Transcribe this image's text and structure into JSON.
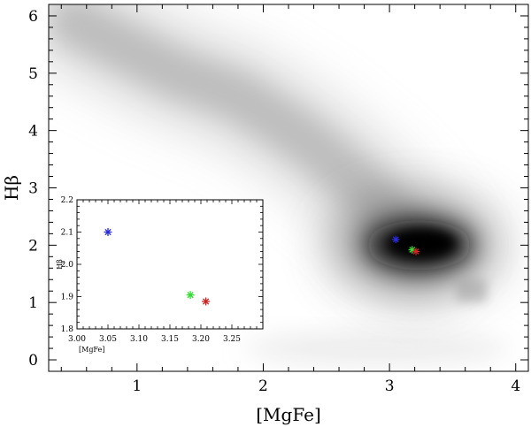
{
  "chart_data": [
    {
      "type": "heatmap",
      "xlabel": "[MgFe]",
      "ylabel": "Hβ",
      "xlim": [
        0.3,
        4.1
      ],
      "ylim": [
        -0.2,
        6.2
      ],
      "xticks": [
        1,
        2,
        3,
        4
      ],
      "yticks": [
        0,
        1,
        2,
        3,
        4,
        5,
        6
      ],
      "density_description_points": [
        {
          "x": 0.5,
          "y": 5.9,
          "level": 0.04
        },
        {
          "x": 1.3,
          "y": 5.0,
          "level": 0.08
        },
        {
          "x": 1.8,
          "y": 4.6,
          "level": 0.12
        },
        {
          "x": 2.3,
          "y": 3.9,
          "level": 0.22
        },
        {
          "x": 2.8,
          "y": 3.0,
          "level": 0.35
        },
        {
          "x": 3.2,
          "y": 2.0,
          "level": 1.0
        },
        {
          "x": 3.65,
          "y": 1.2,
          "level": 0.3
        }
      ],
      "markers": [
        {
          "x": 3.05,
          "y": 2.1,
          "color": "#2a2ad6"
        },
        {
          "x": 3.18,
          "y": 1.92,
          "color": "#33dd33"
        },
        {
          "x": 3.21,
          "y": 1.89,
          "color": "#cc2222"
        }
      ],
      "grid": false
    },
    {
      "type": "scatter",
      "xlabel": "[MgFe]",
      "ylabel": "Hβ",
      "xlim": [
        3.0,
        3.3
      ],
      "ylim": [
        1.8,
        2.2
      ],
      "xticks": [
        3.0,
        3.05,
        3.1,
        3.15,
        3.2,
        3.25
      ],
      "yticks": [
        1.8,
        1.9,
        2.0,
        2.1,
        2.2
      ],
      "points": [
        {
          "x": 3.05,
          "y": 2.1,
          "color": "#2a2ad6"
        },
        {
          "x": 3.183,
          "y": 1.905,
          "color": "#33dd33"
        },
        {
          "x": 3.208,
          "y": 1.885,
          "color": "#cc2222"
        }
      ],
      "grid": false
    }
  ]
}
